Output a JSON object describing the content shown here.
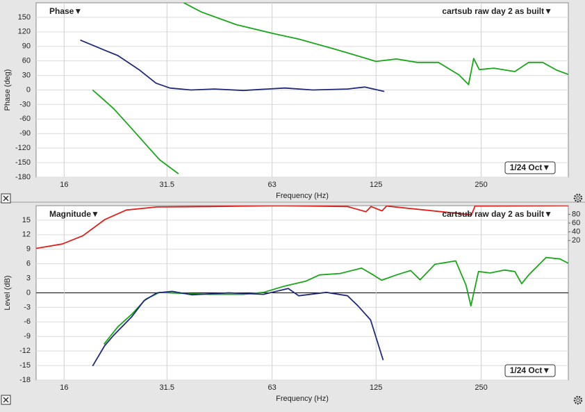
{
  "chart_data": [
    {
      "type": "line",
      "title": "Phase▼",
      "measurement": "cartsub raw day 2 as built▼",
      "smoothing": "1/24 Oct▼",
      "ylabel": "Phase (deg)",
      "xlabel": "Frequency (Hz)",
      "xscale": "log",
      "grid": true,
      "xlim": [
        13.3,
        444
      ],
      "xticks": [
        16,
        31.5,
        63,
        125,
        250
      ],
      "ylim": [
        -180,
        180
      ],
      "yticks": [
        -180,
        -150,
        -120,
        -90,
        -60,
        -30,
        0,
        30,
        60,
        90,
        120,
        150
      ],
      "series": [
        {
          "color": "#1aa51a",
          "x": [
            35.2,
            39.5,
            49.7,
            63,
            75.1,
            94.5,
            113.6,
            125,
            143,
            164,
            188.6,
            216,
            230,
            238,
            247,
            271.6,
            312,
            342,
            375,
            411,
            444
          ],
          "values": [
            180,
            161,
            135,
            117,
            105,
            85,
            68,
            59,
            64,
            57,
            57,
            31,
            11,
            65,
            42,
            45,
            38,
            57,
            57,
            41,
            32
          ]
        },
        {
          "color": "#1aa51a",
          "x": [
            19.3,
            20.9,
            22.2,
            25,
            28,
            30,
            34
          ],
          "values": [
            0,
            -22,
            -39,
            -80,
            -120,
            -144,
            -173
          ]
        },
        {
          "color": "#1f2a7a",
          "x": [
            17.8,
            20.9,
            22.8,
            26.2,
            29.3,
            32.1,
            36.9,
            43.1,
            52.1,
            68.5,
            82.4,
            103.6,
            116,
            132
          ],
          "values": [
            103,
            82,
            71,
            42,
            14,
            4,
            0,
            2,
            -1,
            4,
            0,
            2,
            6,
            -3
          ]
        }
      ]
    },
    {
      "type": "line",
      "title": "Magnitude▼",
      "measurement": "cartsub raw day 2 as built▼",
      "smoothing": "1/24 Oct▼",
      "ylabel": "Level (dB)",
      "xlabel": "Frequency (Hz)",
      "xscale": "log",
      "grid": true,
      "zero_line": true,
      "xlim": [
        13.3,
        444
      ],
      "xticks": [
        16,
        31.5,
        63,
        125,
        250
      ],
      "ylim": [
        -18,
        18
      ],
      "yticks": [
        -18,
        -15,
        -12,
        -9,
        -6,
        -3,
        0,
        3,
        6,
        9,
        12,
        15
      ],
      "y2lim": [
        -300,
        100
      ],
      "y2ticks": [
        20,
        40,
        60,
        80
      ],
      "series": [
        {
          "color": "#e0201a",
          "axis": "y2",
          "x": [
            13.3,
            15.8,
            18.1,
            20.9,
            24.1,
            29.5,
            41.6,
            65.8,
            103.6,
            117,
            121,
            130,
            134,
            234.5,
            240,
            444
          ],
          "values": [
            2,
            12,
            31,
            68,
            90,
            97,
            98,
            100,
            98,
            86,
            98,
            88,
            99,
            79,
            99,
            100
          ]
        },
        {
          "color": "#1aa51a",
          "x": [
            20.8,
            22.8,
            25,
            27.4,
            30,
            34.6,
            41.6,
            52.1,
            59.6,
            68.5,
            78.6,
            86.1,
            98.7,
            113.6,
            122.7,
            129.7,
            143,
            157,
            167.1,
            184.3,
            211.3,
            226.2,
            233.6,
            245.6,
            265.4,
            290.9,
            312,
            326.5,
            342,
            383.4,
            420.3,
            444
          ],
          "values": [
            -10.6,
            -7,
            -4.4,
            -1.3,
            0.1,
            -0.1,
            -0.3,
            -0.3,
            0.1,
            1.4,
            2.4,
            3.7,
            4,
            5.1,
            3.7,
            2.6,
            3.7,
            4.6,
            2.7,
            5.9,
            6.6,
            1.6,
            -2.7,
            4.4,
            4.1,
            4.7,
            4.4,
            1.9,
            3.7,
            7.3,
            7,
            6.1
          ]
        },
        {
          "color": "#1f2a7a",
          "x": [
            19.3,
            20.9,
            22.2,
            25,
            27.1,
            29.5,
            32.6,
            37.1,
            47.4,
            59.6,
            70.1,
            75.1,
            90.1,
            103.6,
            111,
            120.6,
            131
          ],
          "values": [
            -15.1,
            -10.9,
            -8.7,
            -4.9,
            -1.6,
            0,
            0.3,
            -0.4,
            0,
            -0.3,
            0.9,
            -0.6,
            0.1,
            -0.6,
            -2.7,
            -5.6,
            -13.9
          ]
        }
      ]
    }
  ]
}
